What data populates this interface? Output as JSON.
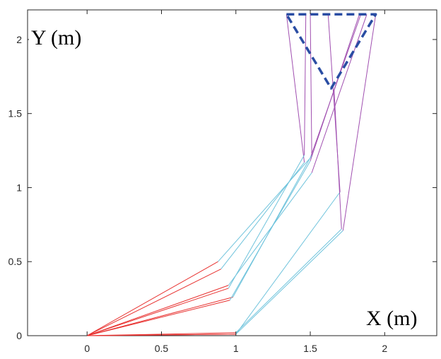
{
  "chart_data": {
    "type": "line",
    "xlabel": "X (m)",
    "ylabel": "Y (m)",
    "xlim": [
      -0.4,
      2.35
    ],
    "ylim": [
      0,
      2.2
    ],
    "x_ticks": [
      "0",
      "0.5",
      "1",
      "1.5",
      "2"
    ],
    "x_tick_values": [
      0,
      0.5,
      1,
      1.5,
      2
    ],
    "y_ticks": [
      "0",
      "0.5",
      "1",
      "1.5",
      "2"
    ],
    "y_tick_values": [
      0,
      0.5,
      1,
      1.5,
      2
    ],
    "grid": false,
    "colors": {
      "link1": "#e8312f",
      "link2": "#6fc3dc",
      "link3": "#a04fb0",
      "platform": "#2a4da3",
      "axis": "#262626"
    },
    "series": [
      {
        "x": [
          0,
          0.88,
          1.5,
          1.84
        ],
        "y": [
          0,
          0.5,
          1.2,
          2.17
        ]
      },
      {
        "x": [
          0,
          0.95,
          1.51,
          1.88
        ],
        "y": [
          0,
          0.34,
          1.1,
          2.17
        ]
      },
      {
        "x": [
          0,
          0.98,
          1.51,
          1.5
        ],
        "y": [
          0,
          0.26,
          1.22,
          2.17
        ]
      },
      {
        "x": [
          0,
          0.9,
          1.46,
          1.34
        ],
        "y": [
          0,
          0.45,
          1.17,
          2.17
        ]
      },
      {
        "x": [
          0,
          0.96,
          1.5,
          1.83
        ],
        "y": [
          0,
          0.24,
          1.18,
          2.17
        ]
      },
      {
        "x": [
          0,
          0.95,
          1.46,
          1.47
        ],
        "y": [
          0,
          0.32,
          1.22,
          2.17
        ]
      },
      {
        "x": [
          0,
          1.0,
          1.7,
          1.62
        ],
        "y": [
          0,
          0.01,
          0.97,
          2.17
        ]
      },
      {
        "x": [
          0,
          1.0,
          1.71,
          1.66
        ],
        "y": [
          0,
          0.02,
          0.72,
          1.66
        ]
      },
      {
        "x": [
          0,
          1.0,
          1.72,
          1.94
        ],
        "y": [
          0,
          0.01,
          0.71,
          2.17
        ]
      }
    ],
    "platform": {
      "x": [
        1.34,
        1.94,
        1.64,
        1.34
      ],
      "y": [
        2.17,
        2.17,
        1.67,
        2.17
      ]
    }
  }
}
